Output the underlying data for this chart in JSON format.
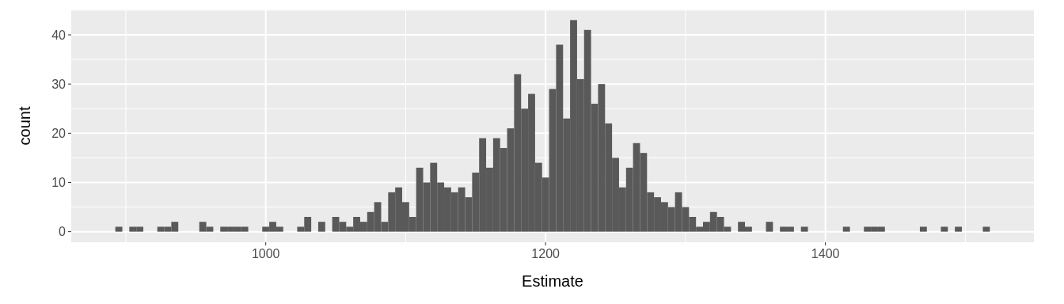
{
  "chart_data": {
    "type": "histogram",
    "xlabel": "Estimate",
    "ylabel": "count",
    "color": "#595959",
    "bins": [
      892.5,
      897.5,
      902.5,
      907.5,
      912.5,
      917.5,
      922.5,
      927.5,
      932.5,
      937.5,
      942.5,
      947.5,
      952.5,
      957.5,
      962.5,
      967.5,
      972.5,
      977.5,
      982.5,
      987.5,
      992.5,
      997.5,
      1002.5,
      1007.5,
      1012.5,
      1017.5,
      1022.5,
      1027.5,
      1032.5,
      1037.5,
      1042.5,
      1047.5,
      1052.5,
      1057.5,
      1062.5,
      1067.5,
      1072.5,
      1077.5,
      1082.5,
      1087.5,
      1092.5,
      1097.5,
      1102.5,
      1107.5,
      1112.5,
      1117.5,
      1122.5,
      1127.5,
      1132.5,
      1137.5,
      1142.5,
      1147.5,
      1152.5,
      1157.5,
      1162.5,
      1167.5,
      1172.5,
      1177.5,
      1182.5,
      1187.5,
      1192.5,
      1197.5,
      1202.5,
      1207.5,
      1212.5,
      1217.5,
      1222.5,
      1227.5,
      1232.5,
      1237.5,
      1242.5,
      1247.5,
      1252.5,
      1257.5,
      1262.5,
      1267.5,
      1272.5,
      1277.5,
      1282.5,
      1287.5,
      1292.5,
      1297.5,
      1302.5,
      1307.5,
      1312.5,
      1317.5,
      1322.5,
      1327.5,
      1332.5,
      1337.5,
      1342.5,
      1347.5,
      1352.5,
      1357.5,
      1362.5,
      1367.5,
      1372.5,
      1377.5,
      1382.5,
      1387.5,
      1392.5,
      1397.5,
      1402.5,
      1407.5,
      1412.5,
      1417.5,
      1422.5,
      1427.5,
      1432.5,
      1437.5,
      1442.5,
      1447.5,
      1452.5,
      1457.5,
      1462.5,
      1467.5,
      1472.5,
      1477.5,
      1482.5,
      1487.5,
      1492.5,
      1497.5,
      1502.5,
      1507.5,
      1512.5,
      1517.5
    ],
    "values": [
      1,
      0,
      1,
      1,
      0,
      0,
      1,
      1,
      2,
      0,
      0,
      0,
      2,
      1,
      0,
      1,
      1,
      1,
      1,
      0,
      0,
      1,
      2,
      1,
      0,
      0,
      1,
      3,
      0,
      2,
      0,
      3,
      2,
      1,
      3,
      2,
      4,
      6,
      2,
      8,
      9,
      6,
      3,
      13,
      10,
      14,
      10,
      9,
      8,
      9,
      7,
      12,
      19,
      13,
      19,
      17,
      21,
      32,
      25,
      28,
      14,
      11,
      29,
      38,
      23,
      43,
      31,
      41,
      26,
      30,
      22,
      15,
      9,
      13,
      18,
      16,
      8,
      7,
      6,
      5,
      8,
      5,
      3,
      1,
      2,
      4,
      3,
      1,
      0,
      2,
      1,
      0,
      0,
      2,
      0,
      1,
      1,
      0,
      1,
      0,
      0,
      0,
      0,
      0,
      1,
      0,
      0,
      1,
      1,
      1,
      0,
      0,
      0,
      0,
      0,
      1,
      0,
      0,
      1,
      0,
      1,
      0,
      0,
      0,
      1
    ],
    "xlim": [
      861,
      1549
    ],
    "ylim": [
      -2.15,
      45.15
    ],
    "xticks": [
      1000,
      1200,
      1400
    ],
    "yticks": [
      0,
      10,
      20,
      30,
      40
    ],
    "grid": true
  }
}
